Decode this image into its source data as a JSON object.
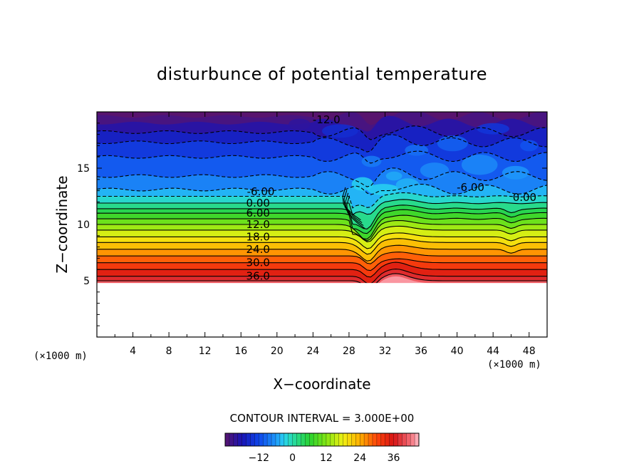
{
  "chart_data": {
    "type": "contour",
    "title": "disturbunce of potential temperature",
    "xlabel": "X−coordinate",
    "ylabel": "Z−coordinate",
    "x_unit": "(×1000 m)",
    "y_unit": "(×1000 m)",
    "xlim": [
      0,
      50
    ],
    "ylim": [
      0,
      20
    ],
    "x_ticks": [
      4,
      8,
      12,
      16,
      20,
      24,
      28,
      32,
      36,
      40,
      44,
      48
    ],
    "y_ticks": [
      5,
      10,
      15
    ],
    "contour_interval_label": "CONTOUR INTERVAL = 3.000E+00",
    "contour_interval": 3.0,
    "terrain_top_z": 4.8,
    "contour_labels": [
      {
        "text": "-12.0",
        "x": 25.5,
        "z": 19.3
      },
      {
        "text": "-6.00",
        "x": 18.2,
        "z": 12.9
      },
      {
        "text": "-6.00",
        "x": 41.5,
        "z": 13.3
      },
      {
        "text": "0.00",
        "x": 17.9,
        "z": 11.9
      },
      {
        "text": "0.00",
        "x": 47.5,
        "z": 12.4
      },
      {
        "text": "6.00",
        "x": 17.9,
        "z": 11.0
      },
      {
        "text": "12.0",
        "x": 17.9,
        "z": 10.0
      },
      {
        "text": "18.0",
        "x": 17.9,
        "z": 8.9
      },
      {
        "text": "24.0",
        "x": 17.9,
        "z": 7.8
      },
      {
        "text": "30.0",
        "x": 17.9,
        "z": 6.6
      },
      {
        "text": "36.0",
        "x": 17.9,
        "z": 5.4
      }
    ],
    "colorbar": {
      "range": [
        -24,
        45
      ],
      "ticks": [
        -12,
        0,
        12,
        24,
        36
      ],
      "tick_labels": [
        "−12",
        "0",
        "12",
        "24",
        "36"
      ]
    }
  }
}
